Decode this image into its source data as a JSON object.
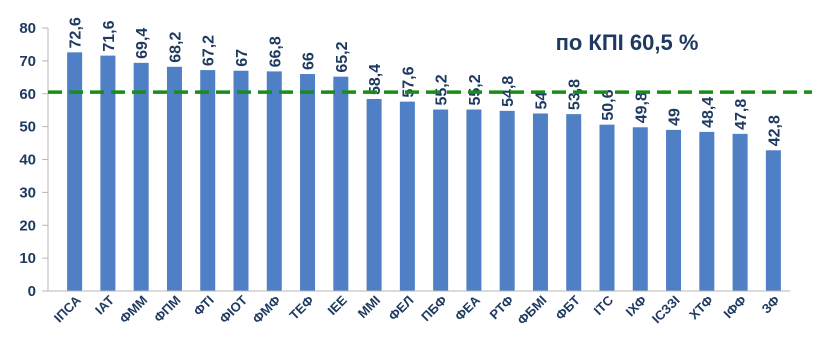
{
  "chart_data": {
    "type": "bar",
    "categories": [
      "ІПСА",
      "ІАТ",
      "ФММ",
      "ФПМ",
      "ФТІ",
      "ФІОТ",
      "ФМФ",
      "ТЕФ",
      "ІЕЕ",
      "ММІ",
      "ФЕЛ",
      "ПБФ",
      "ФЕА",
      "РТФ",
      "ФБМІ",
      "ФБТ",
      "ІТС",
      "ІХФ",
      "ІСЗЗІ",
      "ХТФ",
      "ІФФ",
      "ЗФ"
    ],
    "values": [
      72.6,
      71.6,
      69.4,
      68.2,
      67.2,
      67,
      66.8,
      66,
      65.2,
      58.4,
      57.6,
      55.2,
      55.2,
      54.8,
      54,
      53.8,
      50.6,
      49.8,
      49,
      48.4,
      47.8,
      42.8
    ],
    "value_labels": [
      "72,6",
      "71,6",
      "69,4",
      "68,2",
      "67,2",
      "67",
      "66,8",
      "66",
      "65,2",
      "58,4",
      "57,6",
      "55,2",
      "55,2",
      "54,8",
      "54",
      "53,8",
      "50,6",
      "49,8",
      "49",
      "48,4",
      "47,8",
      "42,8"
    ],
    "yticks": [
      "0",
      "10",
      "20",
      "30",
      "40",
      "50",
      "60",
      "70",
      "80"
    ],
    "ylim": [
      0,
      80
    ],
    "reference_line": {
      "value": 60.5,
      "label": "по КПІ 60,5 %",
      "style": "dashed",
      "color": "#1a8c1a"
    },
    "grid": false,
    "bar_color": "#4f7fc4",
    "title": "",
    "xlabel": "",
    "ylabel": ""
  }
}
